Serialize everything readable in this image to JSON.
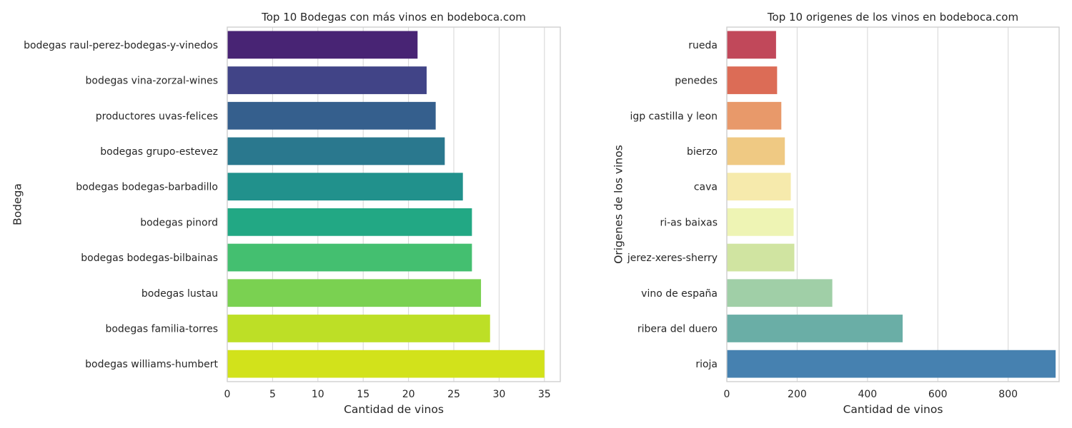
{
  "chart_data": [
    {
      "type": "bar",
      "orientation": "horizontal",
      "title": "Top 10 Bodegas con más vinos en bodeboca.com",
      "xlabel": "Cantidad de vinos",
      "ylabel": "Bodega",
      "xlim": [
        0,
        36.75
      ],
      "xticks": [
        0,
        5,
        10,
        15,
        20,
        25,
        30,
        35
      ],
      "grid": "vertical",
      "palette": "viridis",
      "categories": [
        "bodegas raul-perez-bodegas-y-vinedos",
        "bodegas vina-zorzal-wines",
        "productores uvas-felices",
        "bodegas grupo-estevez",
        "bodegas bodegas-barbadillo",
        "bodegas pinord",
        "bodegas bodegas-bilbainas",
        "bodegas lustau",
        "bodegas familia-torres",
        "bodegas williams-humbert"
      ],
      "values": [
        21,
        22,
        23,
        24,
        26,
        27,
        27,
        28,
        29,
        35
      ],
      "colors": [
        "#482474",
        "#414487",
        "#355f8d",
        "#2a788e",
        "#21918c",
        "#22a884",
        "#44bf70",
        "#7ad151",
        "#bddf26",
        "#d2e21b"
      ]
    },
    {
      "type": "bar",
      "orientation": "horizontal",
      "title": "Top 10 origenes de los vinos en bodeboca.com",
      "xlabel": "Cantidad de vinos",
      "ylabel": "Origenes de los vinos",
      "xlim": [
        0,
        945
      ],
      "xticks": [
        0,
        200,
        400,
        600,
        800
      ],
      "grid": "vertical",
      "palette": "Spectral",
      "categories": [
        "rueda",
        "penedes",
        "igp castilla y leon",
        "bierzo",
        "cava",
        "ri-as baixas",
        "jerez-xeres-sherry",
        "vino de españa",
        "ribera del duero",
        "rioja"
      ],
      "values": [
        140,
        143,
        155,
        165,
        182,
        190,
        192,
        300,
        500,
        935
      ],
      "colors": [
        "#c1485a",
        "#dc6c56",
        "#e8996a",
        "#efc983",
        "#f6eaac",
        "#eef4b4",
        "#d0e4a1",
        "#a0cfa7",
        "#6aaea6",
        "#4681b0"
      ]
    }
  ]
}
